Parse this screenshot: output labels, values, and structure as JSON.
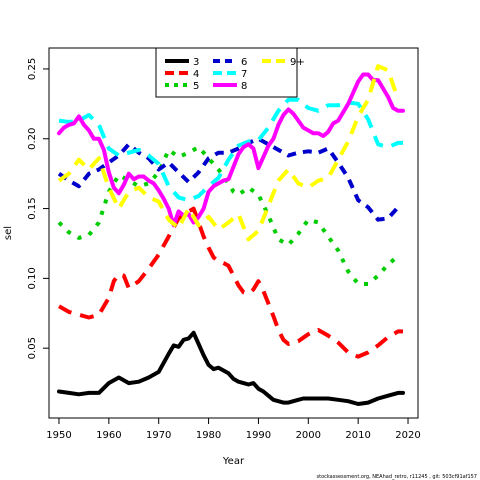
{
  "chart_data": {
    "type": "line",
    "xlabel": "Year",
    "ylabel": "sel",
    "xlim": [
      1948,
      2022
    ],
    "ylim": [
      0.0,
      0.265
    ],
    "xticks": [
      1950,
      1960,
      1970,
      1980,
      1990,
      2000,
      2010,
      2020
    ],
    "yticks": [
      0.05,
      0.1,
      0.15,
      0.2,
      0.25
    ],
    "yticklabels": [
      "0.05",
      "0.10",
      "0.15",
      "0.20",
      "0.25"
    ],
    "legend_position": "top-center",
    "footer": "stockassessment.org, NEAhad_retro, r11245 , git: 503cf91af157",
    "series": [
      {
        "name": "3",
        "color": "#000000",
        "dash": "solid",
        "x": [
          1950,
          1952,
          1954,
          1956,
          1958,
          1960,
          1962,
          1964,
          1966,
          1968,
          1970,
          1972,
          1973,
          1974,
          1975,
          1976,
          1977,
          1978,
          1979,
          1980,
          1981,
          1982,
          1983,
          1984,
          1985,
          1986,
          1987,
          1988,
          1989,
          1990,
          1991,
          1992,
          1993,
          1994,
          1995,
          1996,
          1997,
          1998,
          1999,
          2000,
          2002,
          2004,
          2006,
          2008,
          2010,
          2012,
          2014,
          2016,
          2018,
          2019
        ],
        "y": [
          0.019,
          0.018,
          0.017,
          0.018,
          0.018,
          0.025,
          0.029,
          0.025,
          0.026,
          0.029,
          0.033,
          0.046,
          0.052,
          0.051,
          0.056,
          0.057,
          0.061,
          0.053,
          0.045,
          0.038,
          0.035,
          0.036,
          0.034,
          0.032,
          0.028,
          0.026,
          0.025,
          0.024,
          0.025,
          0.021,
          0.019,
          0.016,
          0.013,
          0.012,
          0.011,
          0.011,
          0.012,
          0.013,
          0.014,
          0.014,
          0.014,
          0.014,
          0.013,
          0.012,
          0.01,
          0.011,
          0.014,
          0.016,
          0.018,
          0.018
        ]
      },
      {
        "name": "4",
        "color": "#ff0000",
        "dash": "long",
        "x": [
          1950,
          1952,
          1954,
          1956,
          1958,
          1960,
          1961,
          1962,
          1963,
          1964,
          1966,
          1968,
          1970,
          1972,
          1974,
          1975,
          1976,
          1977,
          1978,
          1979,
          1980,
          1981,
          1982,
          1983,
          1984,
          1985,
          1986,
          1987,
          1988,
          1989,
          1990,
          1991,
          1992,
          1993,
          1994,
          1995,
          1996,
          1998,
          2000,
          2002,
          2004,
          2006,
          2008,
          2010,
          2012,
          2014,
          2016,
          2018,
          2019
        ],
        "y": [
          0.08,
          0.076,
          0.074,
          0.072,
          0.074,
          0.086,
          0.098,
          0.103,
          0.102,
          0.093,
          0.098,
          0.107,
          0.117,
          0.13,
          0.143,
          0.145,
          0.148,
          0.15,
          0.14,
          0.13,
          0.122,
          0.115,
          0.112,
          0.111,
          0.109,
          0.102,
          0.095,
          0.09,
          0.089,
          0.092,
          0.098,
          0.091,
          0.082,
          0.073,
          0.063,
          0.056,
          0.053,
          0.055,
          0.06,
          0.063,
          0.059,
          0.054,
          0.047,
          0.044,
          0.047,
          0.052,
          0.058,
          0.062,
          0.062
        ]
      },
      {
        "name": "5",
        "color": "#00cd00",
        "dash": "dot",
        "x": [
          1950,
          1952,
          1954,
          1956,
          1958,
          1960,
          1962,
          1964,
          1966,
          1968,
          1970,
          1972,
          1974,
          1976,
          1978,
          1980,
          1982,
          1984,
          1985,
          1986,
          1988,
          1990,
          1992,
          1994,
          1996,
          1998,
          2000,
          2002,
          2004,
          2006,
          2008,
          2010,
          2012,
          2014,
          2016,
          2018
        ],
        "y": [
          0.14,
          0.133,
          0.129,
          0.131,
          0.14,
          0.162,
          0.174,
          0.17,
          0.166,
          0.168,
          0.176,
          0.192,
          0.187,
          0.19,
          0.194,
          0.186,
          0.178,
          0.168,
          0.162,
          0.16,
          0.165,
          0.16,
          0.145,
          0.128,
          0.124,
          0.132,
          0.142,
          0.14,
          0.13,
          0.12,
          0.105,
          0.096,
          0.096,
          0.102,
          0.11,
          0.116
        ]
      },
      {
        "name": "6",
        "color": "#0000cd",
        "dash": "dash",
        "x": [
          1950,
          1952,
          1954,
          1956,
          1958,
          1960,
          1962,
          1964,
          1966,
          1968,
          1970,
          1972,
          1974,
          1976,
          1978,
          1980,
          1982,
          1984,
          1986,
          1988,
          1990,
          1992,
          1994,
          1996,
          1998,
          2000,
          2002,
          2004,
          2006,
          2008,
          2010,
          2012,
          2014,
          2016,
          2018
        ],
        "y": [
          0.175,
          0.17,
          0.166,
          0.175,
          0.178,
          0.183,
          0.188,
          0.196,
          0.19,
          0.186,
          0.178,
          0.183,
          0.176,
          0.169,
          0.176,
          0.186,
          0.19,
          0.19,
          0.193,
          0.197,
          0.2,
          0.196,
          0.192,
          0.188,
          0.19,
          0.191,
          0.19,
          0.193,
          0.183,
          0.172,
          0.156,
          0.151,
          0.142,
          0.143,
          0.151
        ]
      },
      {
        "name": "7",
        "color": "#00ffff",
        "dash": "long",
        "x": [
          1950,
          1952,
          1954,
          1956,
          1958,
          1960,
          1962,
          1964,
          1966,
          1968,
          1970,
          1972,
          1974,
          1976,
          1978,
          1980,
          1982,
          1984,
          1986,
          1988,
          1990,
          1992,
          1994,
          1996,
          1998,
          2000,
          2002,
          2004,
          2006,
          2008,
          2010,
          2012,
          2014,
          2016,
          2018,
          2019
        ],
        "y": [
          0.213,
          0.212,
          0.213,
          0.217,
          0.21,
          0.193,
          0.188,
          0.19,
          0.192,
          0.188,
          0.182,
          0.166,
          0.158,
          0.156,
          0.159,
          0.166,
          0.172,
          0.185,
          0.195,
          0.198,
          0.199,
          0.208,
          0.22,
          0.228,
          0.228,
          0.222,
          0.22,
          0.224,
          0.224,
          0.226,
          0.225,
          0.214,
          0.196,
          0.194,
          0.197,
          0.197
        ]
      },
      {
        "name": "8",
        "color": "#ff00ff",
        "dash": "solid",
        "x": [
          1950,
          1951,
          1952,
          1953,
          1954,
          1955,
          1956,
          1957,
          1958,
          1959,
          1960,
          1961,
          1962,
          1963,
          1964,
          1965,
          1966,
          1967,
          1968,
          1969,
          1970,
          1971,
          1972,
          1973,
          1974,
          1975,
          1976,
          1977,
          1978,
          1979,
          1980,
          1981,
          1982,
          1983,
          1984,
          1985,
          1986,
          1987,
          1988,
          1989,
          1990,
          1991,
          1992,
          1993,
          1994,
          1995,
          1996,
          1997,
          1998,
          1999,
          2000,
          2001,
          2002,
          2003,
          2004,
          2005,
          2006,
          2007,
          2008,
          2009,
          2010,
          2011,
          2012,
          2013,
          2014,
          2015,
          2016,
          2017,
          2018,
          2019
        ],
        "y": [
          0.204,
          0.208,
          0.21,
          0.211,
          0.216,
          0.21,
          0.206,
          0.2,
          0.2,
          0.192,
          0.176,
          0.165,
          0.161,
          0.167,
          0.175,
          0.171,
          0.173,
          0.173,
          0.17,
          0.168,
          0.163,
          0.157,
          0.15,
          0.138,
          0.148,
          0.145,
          0.146,
          0.14,
          0.144,
          0.15,
          0.162,
          0.166,
          0.168,
          0.17,
          0.171,
          0.18,
          0.189,
          0.194,
          0.196,
          0.193,
          0.179,
          0.187,
          0.195,
          0.2,
          0.21,
          0.217,
          0.221,
          0.218,
          0.213,
          0.208,
          0.206,
          0.204,
          0.204,
          0.202,
          0.205,
          0.211,
          0.213,
          0.219,
          0.225,
          0.233,
          0.241,
          0.246,
          0.246,
          0.242,
          0.242,
          0.236,
          0.23,
          0.222,
          0.22,
          0.22
        ]
      },
      {
        "name": "9+",
        "color": "#ffff00",
        "dash": "long",
        "x": [
          1950,
          1952,
          1954,
          1956,
          1958,
          1960,
          1962,
          1964,
          1966,
          1968,
          1970,
          1972,
          1974,
          1976,
          1978,
          1980,
          1982,
          1984,
          1986,
          1988,
          1990,
          1992,
          1994,
          1996,
          1998,
          2000,
          2002,
          2004,
          2006,
          2008,
          2010,
          2012,
          2014,
          2016,
          2018
        ],
        "y": [
          0.17,
          0.175,
          0.185,
          0.178,
          0.186,
          0.165,
          0.15,
          0.162,
          0.165,
          0.158,
          0.155,
          0.142,
          0.136,
          0.15,
          0.138,
          0.144,
          0.135,
          0.14,
          0.146,
          0.128,
          0.134,
          0.152,
          0.17,
          0.178,
          0.168,
          0.165,
          0.17,
          0.172,
          0.185,
          0.198,
          0.216,
          0.228,
          0.252,
          0.249,
          0.228
        ]
      }
    ]
  }
}
